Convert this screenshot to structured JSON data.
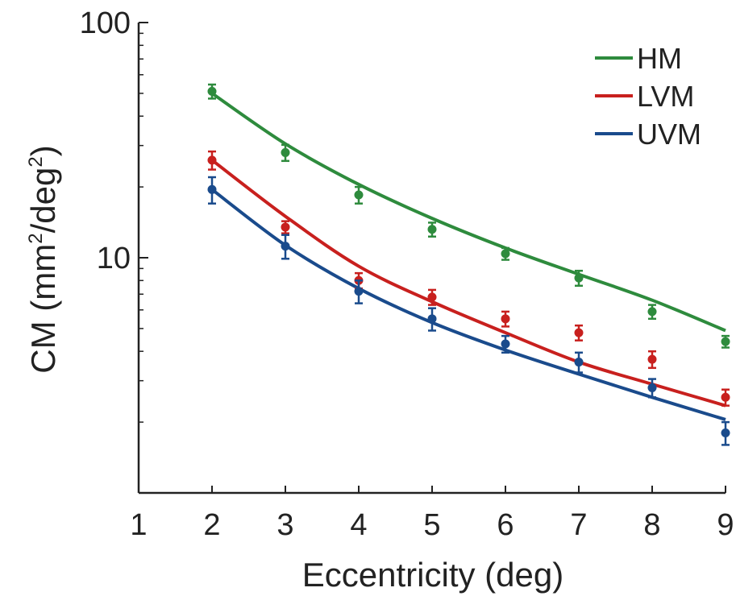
{
  "chart_data": {
    "type": "scatter",
    "xlabel": "Eccentricity (deg)",
    "ylabel": {
      "prefix": "CM (mm",
      "sup1": "2",
      "middle": "/deg",
      "sup2": "2",
      "suffix": ")"
    },
    "xlim": [
      1,
      9
    ],
    "ylim": [
      1,
      100
    ],
    "y_scale": "log",
    "x_ticks": [
      1,
      2,
      3,
      4,
      5,
      6,
      7,
      8,
      9
    ],
    "y_ticks": [
      10,
      100
    ],
    "grid": false,
    "legend_position": "top-right",
    "series": [
      {
        "name": "HM",
        "color": "#2e8b3d",
        "x": [
          2,
          3,
          4,
          5,
          6,
          7,
          8,
          9
        ],
        "y": [
          51,
          28,
          18.5,
          13.2,
          10.4,
          8.2,
          5.9,
          4.4
        ],
        "err": [
          3.5,
          2.2,
          1.5,
          0.9,
          0.6,
          0.6,
          0.4,
          0.25
        ],
        "fit": [
          50,
          30.5,
          20.5,
          14.7,
          11,
          8.5,
          6.6,
          4.9
        ]
      },
      {
        "name": "LVM",
        "color": "#c8201e",
        "x": [
          2,
          3,
          4,
          5,
          6,
          7,
          8,
          9
        ],
        "y": [
          26,
          13.5,
          8,
          6.8,
          5.5,
          4.8,
          3.7,
          2.55
        ],
        "err": [
          2.3,
          0.8,
          0.6,
          0.5,
          0.4,
          0.35,
          0.3,
          0.2
        ],
        "fit": [
          26,
          15,
          9.2,
          6.5,
          4.8,
          3.6,
          2.9,
          2.35
        ]
      },
      {
        "name": "UVM",
        "color": "#1a4b8c",
        "x": [
          2,
          3,
          4,
          5,
          6,
          7,
          8,
          9
        ],
        "y": [
          19.5,
          11.2,
          7.2,
          5.5,
          4.3,
          3.6,
          2.8,
          1.8
        ],
        "err": [
          2.5,
          1.3,
          0.8,
          0.6,
          0.35,
          0.35,
          0.25,
          0.2
        ],
        "fit": [
          19.5,
          11.3,
          7.4,
          5.3,
          4.05,
          3.2,
          2.55,
          2.05
        ]
      }
    ]
  }
}
